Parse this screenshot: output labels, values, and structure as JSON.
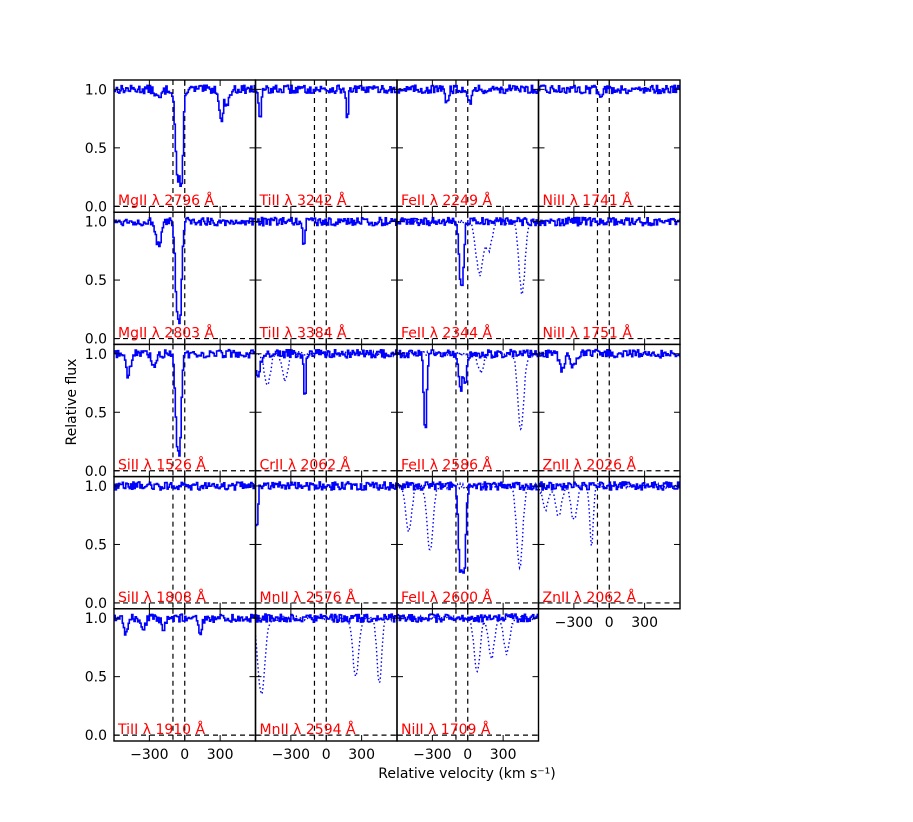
{
  "chart_data": {
    "type": "line",
    "xlabel": "Relative velocity (km s⁻¹)",
    "ylabel": "Relative flux",
    "xlim": [
      -600,
      600
    ],
    "ylim": [
      -0.05,
      1.08
    ],
    "xticks": [
      {
        "v": -300,
        "label": "−300"
      },
      {
        "v": 0,
        "label": "0"
      },
      {
        "v": 300,
        "label": "300"
      }
    ],
    "yticks": [
      {
        "v": 0.0,
        "label": "0.0"
      },
      {
        "v": 0.5,
        "label": "0.5"
      },
      {
        "v": 1.0,
        "label": "1.0"
      }
    ],
    "component_lines": [
      -100,
      0
    ],
    "panels": [
      {
        "label": "MgII λ 2796 Å",
        "row": 0,
        "col": 0,
        "absorptions": [
          [
            -60,
            0.25,
            18
          ],
          [
            -30,
            0.15,
            15
          ],
          [
            -220,
            0.92,
            25
          ],
          [
            310,
            0.72,
            15
          ],
          [
            360,
            0.88,
            20
          ]
        ],
        "blends": []
      },
      {
        "label": "TiII λ 3242 Å",
        "row": 0,
        "col": 1,
        "absorptions": [
          [
            -560,
            0.72,
            10
          ],
          [
            180,
            0.72,
            8
          ]
        ],
        "blends": []
      },
      {
        "label": "FeII λ 2249 Å",
        "row": 0,
        "col": 2,
        "absorptions": [
          [
            -180,
            0.9,
            15
          ],
          [
            20,
            0.9,
            15
          ]
        ],
        "blends": []
      },
      {
        "label": "NiII λ 1741 Å",
        "row": 0,
        "col": 3,
        "absorptions": [
          [
            -80,
            0.95,
            15
          ]
        ],
        "blends": []
      },
      {
        "label": "MgII λ 2803 Å",
        "row": 1,
        "col": 0,
        "absorptions": [
          [
            -60,
            0.22,
            18
          ],
          [
            -40,
            0.25,
            15
          ],
          [
            -220,
            0.8,
            25
          ]
        ],
        "blends": []
      },
      {
        "label": "TiII λ 3384 Å",
        "row": 1,
        "col": 1,
        "absorptions": [
          [
            -190,
            0.82,
            10
          ]
        ],
        "blends": []
      },
      {
        "label": "FeII λ 2344 Å",
        "row": 1,
        "col": 2,
        "absorptions": [
          [
            -60,
            0.5,
            15
          ],
          [
            -40,
            0.65,
            12
          ]
        ],
        "blends": [
          [
            100,
            0.55,
            30
          ],
          [
            180,
            0.75,
            25
          ],
          [
            460,
            0.38,
            25
          ]
        ]
      },
      {
        "label": "NiII λ 1751 Å",
        "row": 1,
        "col": 3,
        "absorptions": [],
        "blends": []
      },
      {
        "label": "SiII λ 1526 Å",
        "row": 2,
        "col": 0,
        "absorptions": [
          [
            -60,
            0.22,
            18
          ],
          [
            -40,
            0.3,
            12
          ],
          [
            -480,
            0.82,
            20
          ],
          [
            -260,
            0.88,
            20
          ]
        ],
        "blends": []
      },
      {
        "label": "CrII λ 2062 Å",
        "row": 2,
        "col": 1,
        "absorptions": [
          [
            -580,
            0.8,
            20
          ],
          [
            -180,
            0.6,
            8
          ]
        ],
        "blends": [
          [
            -500,
            0.72,
            25
          ],
          [
            -350,
            0.78,
            25
          ]
        ]
      },
      {
        "label": "FeII λ 2586 Å",
        "row": 2,
        "col": 2,
        "absorptions": [
          [
            -360,
            0.32,
            12
          ],
          [
            -60,
            0.68,
            15
          ],
          [
            -20,
            0.75,
            12
          ]
        ],
        "blends": [
          [
            110,
            0.85,
            25
          ],
          [
            450,
            0.35,
            25
          ]
        ]
      },
      {
        "label": "ZnII λ 2026 Å",
        "row": 2,
        "col": 3,
        "absorptions": [
          [
            -400,
            0.85,
            20
          ],
          [
            -300,
            0.88,
            20
          ]
        ],
        "blends": []
      },
      {
        "label": "SiII λ 1808 Å",
        "row": 3,
        "col": 0,
        "absorptions": [],
        "blends": []
      },
      {
        "label": "MnII λ 2576 Å",
        "row": 3,
        "col": 1,
        "absorptions": [
          [
            -590,
            0.6,
            10
          ]
        ],
        "blends": []
      },
      {
        "label": "FeII λ 2600 Å",
        "row": 3,
        "col": 2,
        "absorptions": [
          [
            -60,
            0.28,
            18
          ],
          [
            -30,
            0.3,
            15
          ]
        ],
        "blends": [
          [
            -500,
            0.62,
            25
          ],
          [
            -320,
            0.45,
            25
          ],
          [
            440,
            0.3,
            25
          ]
        ]
      },
      {
        "label": "ZnII λ 2062 Å",
        "row": 3,
        "col": 3,
        "absorptions": [],
        "blends": [
          [
            -540,
            0.8,
            25
          ],
          [
            -430,
            0.75,
            25
          ],
          [
            -300,
            0.7,
            25
          ],
          [
            -150,
            0.5,
            15
          ]
        ]
      },
      {
        "label": "TiII λ 1910 Å",
        "row": 4,
        "col": 0,
        "absorptions": [
          [
            -500,
            0.85,
            15
          ],
          [
            -350,
            0.88,
            15
          ],
          [
            -180,
            0.9,
            15
          ],
          [
            130,
            0.85,
            15
          ]
        ],
        "blends": []
      },
      {
        "label": "MnII λ 2594 Å",
        "row": 4,
        "col": 1,
        "absorptions": [],
        "blends": [
          [
            -550,
            0.35,
            30
          ],
          [
            250,
            0.5,
            25
          ],
          [
            450,
            0.45,
            20
          ]
        ]
      },
      {
        "label": "NiII λ 1709 Å",
        "row": 4,
        "col": 2,
        "absorptions": [],
        "blends": [
          [
            80,
            0.55,
            25
          ],
          [
            200,
            0.65,
            25
          ],
          [
            330,
            0.7,
            25
          ]
        ]
      }
    ]
  }
}
